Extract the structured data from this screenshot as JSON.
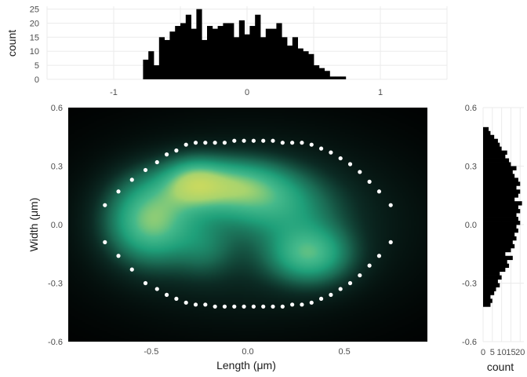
{
  "chart_data": [
    {
      "id": "top_histogram",
      "type": "bar",
      "title": "",
      "xlabel": "",
      "ylabel": "count",
      "xlim": [
        -1.5,
        1.5
      ],
      "ylim": [
        0,
        26
      ],
      "x_ticks": [
        {
          "value": -1,
          "label": "-1"
        },
        {
          "value": 0,
          "label": "0"
        },
        {
          "value": 1,
          "label": "1"
        }
      ],
      "y_ticks": [
        {
          "value": 0,
          "label": "0"
        },
        {
          "value": 5,
          "label": "5"
        },
        {
          "value": 10,
          "label": "10"
        },
        {
          "value": 15,
          "label": "15"
        },
        {
          "value": 20,
          "label": "20"
        },
        {
          "value": 25,
          "label": "25"
        }
      ],
      "bin_start": -0.78,
      "bin_width": 0.04,
      "values": [
        7,
        10,
        5,
        15,
        14,
        17,
        19,
        20,
        23,
        18,
        25,
        14,
        19,
        18,
        19,
        20,
        20,
        15,
        21,
        16,
        19,
        23,
        15,
        18,
        18,
        20,
        15,
        12,
        15,
        11,
        10,
        9,
        5,
        4,
        3,
        1,
        1,
        1
      ],
      "grid": true,
      "color": "#000000"
    },
    {
      "id": "density_panel",
      "type": "heatmap",
      "title": "",
      "xlabel": "Length (μm)",
      "ylabel": "Width (μm)",
      "xlim": [
        -0.93,
        0.93
      ],
      "ylim": [
        -0.6,
        0.6
      ],
      "x_ticks": [
        {
          "value": -0.5,
          "label": "-0.5"
        },
        {
          "value": 0,
          "label": "0.0"
        },
        {
          "value": 0.5,
          "label": "0.5"
        }
      ],
      "y_ticks": [
        {
          "value": -0.6,
          "label": "-0.6"
        },
        {
          "value": -0.3,
          "label": "-0.3"
        },
        {
          "value": 0,
          "label": "0.0"
        },
        {
          "value": 0.3,
          "label": "0.3"
        },
        {
          "value": 0.6,
          "label": "0.6"
        }
      ],
      "colormap": [
        "#000000",
        "#0c2b24",
        "#1b6b54",
        "#1fa07a",
        "#45b98b",
        "#a9d46e",
        "#c8d960"
      ],
      "density_blobs": [
        {
          "x": -0.5,
          "y": 0.02,
          "sx": 0.15,
          "sy": 0.14,
          "w": 1.0
        },
        {
          "x": -0.1,
          "y": 0.2,
          "sx": 0.22,
          "sy": 0.09,
          "w": 0.95
        },
        {
          "x": 0.32,
          "y": -0.15,
          "sx": 0.14,
          "sy": 0.1,
          "w": 0.85
        },
        {
          "x": -0.28,
          "y": 0.22,
          "sx": 0.1,
          "sy": 0.08,
          "w": 0.55
        },
        {
          "x": 0.15,
          "y": 0.08,
          "sx": 0.2,
          "sy": 0.1,
          "w": 0.45
        },
        {
          "x": 0.0,
          "y": 0.0,
          "sx": 0.55,
          "sy": 0.3,
          "w": 0.3
        },
        {
          "x": -0.22,
          "y": -0.12,
          "sx": 0.1,
          "sy": 0.1,
          "w": 0.25
        }
      ],
      "outline_points": [
        [
          -0.74,
          0.1
        ],
        [
          -0.67,
          0.17
        ],
        [
          -0.6,
          0.23
        ],
        [
          -0.53,
          0.28
        ],
        [
          -0.47,
          0.32
        ],
        [
          -0.42,
          0.36
        ],
        [
          -0.37,
          0.38
        ],
        [
          -0.32,
          0.41
        ],
        [
          -0.27,
          0.42
        ],
        [
          -0.22,
          0.42
        ],
        [
          -0.17,
          0.42
        ],
        [
          -0.12,
          0.42
        ],
        [
          -0.07,
          0.43
        ],
        [
          -0.02,
          0.43
        ],
        [
          0.03,
          0.43
        ],
        [
          0.08,
          0.43
        ],
        [
          0.13,
          0.43
        ],
        [
          0.18,
          0.42
        ],
        [
          0.23,
          0.42
        ],
        [
          0.28,
          0.42
        ],
        [
          0.33,
          0.41
        ],
        [
          0.38,
          0.39
        ],
        [
          0.43,
          0.37
        ],
        [
          0.48,
          0.34
        ],
        [
          0.53,
          0.31
        ],
        [
          0.58,
          0.27
        ],
        [
          0.63,
          0.22
        ],
        [
          0.68,
          0.17
        ],
        [
          0.74,
          0.1
        ],
        [
          0.74,
          -0.09
        ],
        [
          0.68,
          -0.16
        ],
        [
          0.63,
          -0.21
        ],
        [
          0.58,
          -0.26
        ],
        [
          0.53,
          -0.3
        ],
        [
          0.48,
          -0.33
        ],
        [
          0.43,
          -0.36
        ],
        [
          0.38,
          -0.38
        ],
        [
          0.33,
          -0.4
        ],
        [
          0.28,
          -0.41
        ],
        [
          0.23,
          -0.41
        ],
        [
          0.18,
          -0.42
        ],
        [
          0.13,
          -0.42
        ],
        [
          0.08,
          -0.42
        ],
        [
          0.03,
          -0.42
        ],
        [
          -0.02,
          -0.42
        ],
        [
          -0.07,
          -0.42
        ],
        [
          -0.12,
          -0.42
        ],
        [
          -0.17,
          -0.42
        ],
        [
          -0.22,
          -0.41
        ],
        [
          -0.27,
          -0.41
        ],
        [
          -0.32,
          -0.4
        ],
        [
          -0.37,
          -0.38
        ],
        [
          -0.42,
          -0.36
        ],
        [
          -0.47,
          -0.33
        ],
        [
          -0.53,
          -0.3
        ],
        [
          -0.6,
          -0.23
        ],
        [
          -0.67,
          -0.16
        ],
        [
          -0.74,
          -0.09
        ]
      ],
      "outline_color": "#ffffff"
    },
    {
      "id": "right_histogram",
      "type": "bar",
      "orientation": "horizontal",
      "title": "",
      "xlabel": "count",
      "ylabel": "",
      "xlim": [
        0,
        22
      ],
      "ylim": [
        -0.6,
        0.6
      ],
      "x_ticks": [
        {
          "value": 0,
          "label": "0"
        },
        {
          "value": 5,
          "label": "5"
        },
        {
          "value": 10,
          "label": "10"
        },
        {
          "value": 15,
          "label": "15"
        },
        {
          "value": 20,
          "label": "20"
        }
      ],
      "y_ticks": [
        {
          "value": -0.6,
          "label": "-0.6"
        },
        {
          "value": -0.3,
          "label": "-0.3"
        },
        {
          "value": 0,
          "label": "0.0"
        },
        {
          "value": 0.3,
          "label": "0.3"
        },
        {
          "value": 0.6,
          "label": "0.6"
        }
      ],
      "bin_start": -0.42,
      "bin_width": 0.02,
      "values": [
        4,
        5,
        4,
        6,
        7,
        9,
        8,
        10,
        9,
        12,
        14,
        13,
        16,
        12,
        15,
        17,
        16,
        18,
        17,
        19,
        18,
        20,
        19,
        18,
        20,
        19,
        21,
        17,
        19,
        20,
        18,
        20,
        19,
        17,
        16,
        18,
        15,
        14,
        12,
        13,
        10,
        9,
        8,
        6,
        4,
        3
      ],
      "grid": true,
      "color": "#000000"
    }
  ]
}
